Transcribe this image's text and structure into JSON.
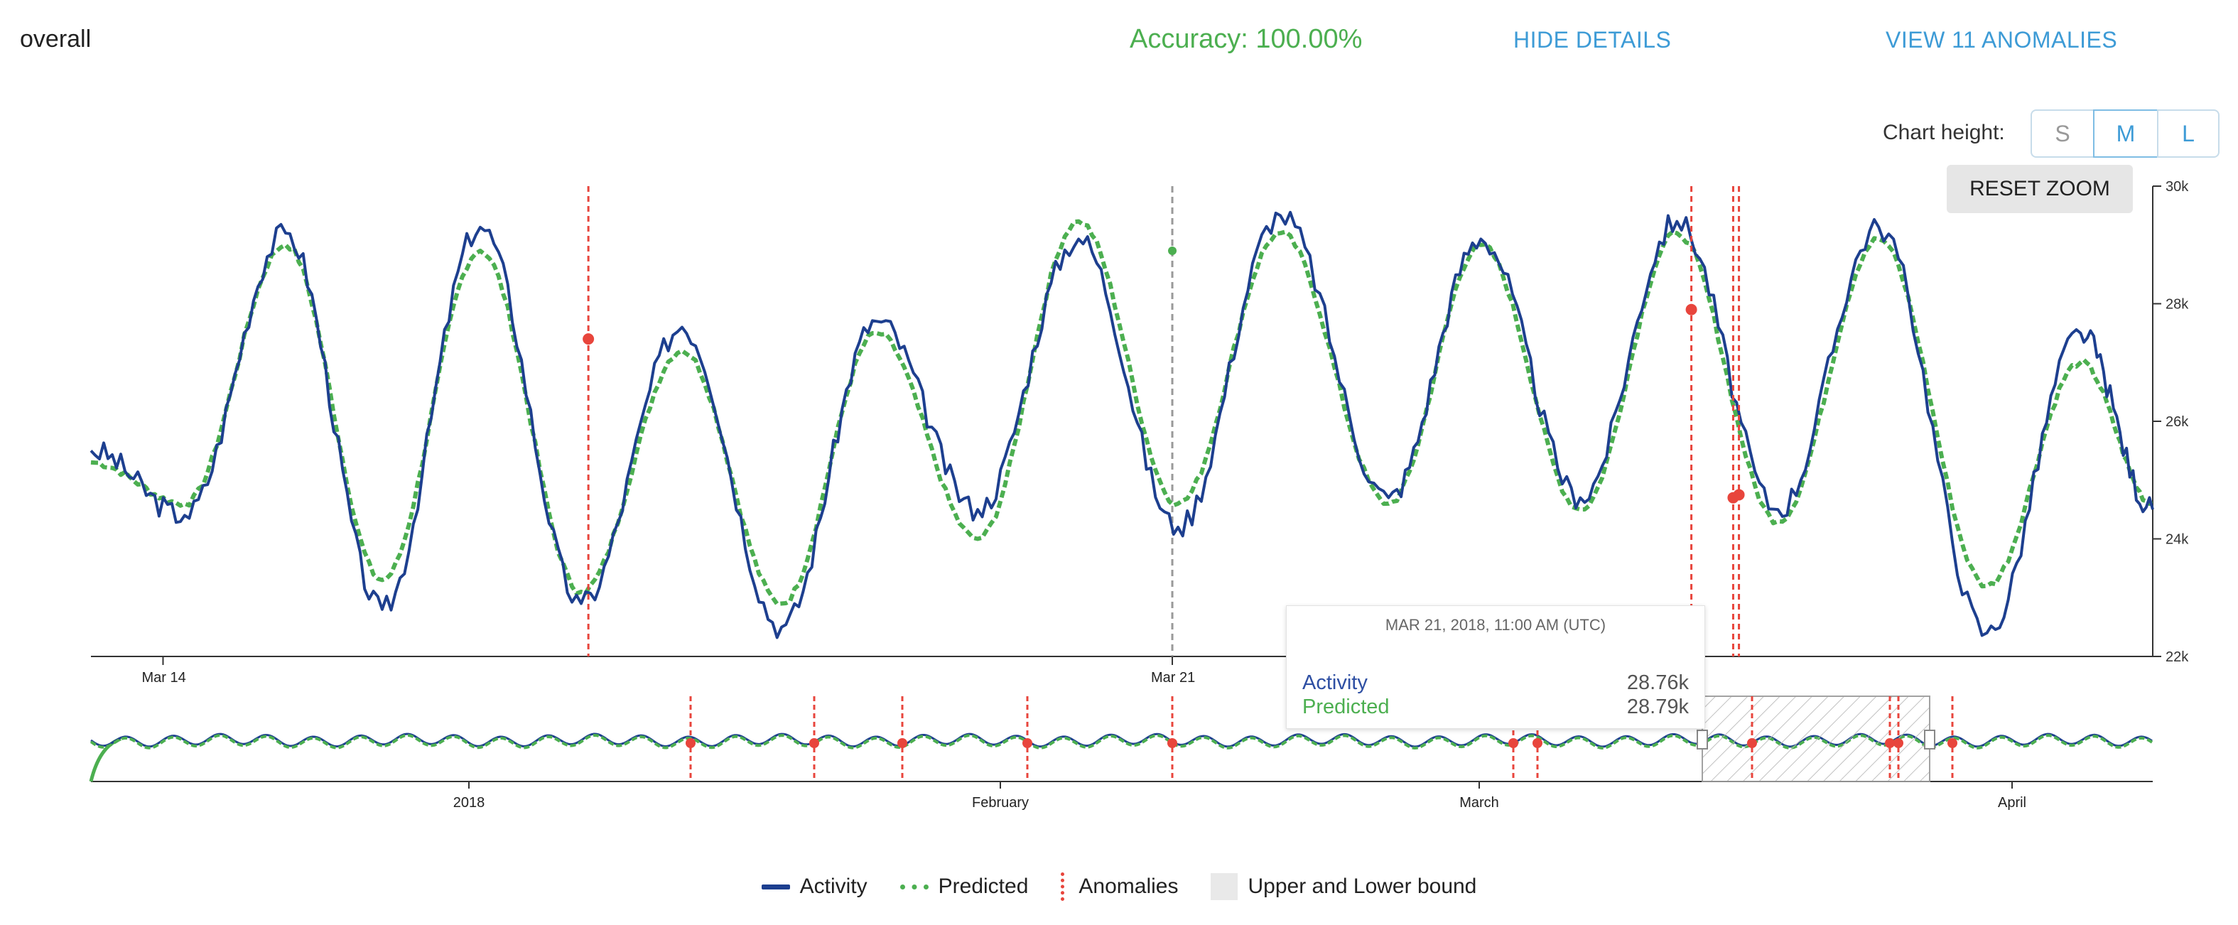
{
  "header": {
    "title": "overall",
    "accuracy": "Accuracy: 100.00%",
    "hide_details": "HIDE DETAILS",
    "view_anomalies": "VIEW 11 ANOMALIES"
  },
  "chart_height": {
    "label": "Chart height:",
    "options": [
      "S",
      "M",
      "L"
    ],
    "selected": "M"
  },
  "reset_zoom": "RESET ZOOM",
  "tooltip": {
    "date": "MAR 21, 2018, 11:00 AM (UTC)",
    "rows": [
      {
        "name": "Activity",
        "value": "28.76k"
      },
      {
        "name": "Predicted",
        "value": "28.79k"
      }
    ]
  },
  "legend": {
    "activity": "Activity",
    "predicted": "Predicted",
    "anomalies": "Anomalies",
    "bound": "Upper and Lower bound"
  },
  "colors": {
    "activity": "#1d3f8f",
    "predicted": "#4caf50",
    "anomaly": "#e8453c",
    "accent": "#3d9bd6"
  },
  "chart_data": [
    {
      "type": "line",
      "title": "",
      "xlabel": "",
      "ylabel": "",
      "x_range_days": [
        13.5,
        27.8
      ],
      "x_ticks": [
        {
          "day": 14,
          "label": "Mar 14"
        },
        {
          "day": 21,
          "label": "Mar 21"
        }
      ],
      "ylim": [
        22000,
        30000
      ],
      "y_ticks": [
        "22k",
        "24k",
        "26k",
        "28k",
        "30k"
      ],
      "y_tick_values": [
        22000,
        24000,
        26000,
        28000,
        30000
      ],
      "series": [
        {
          "name": "Activity",
          "peaks_day": [
            14.15,
            14.85,
            15.52,
            16.2,
            16.9,
            17.6,
            18.29,
            18.95,
            19.65,
            20.35,
            21.04,
            21.75,
            22.5,
            23.14,
            23.83,
            24.5,
            25.2,
            25.9,
            26.65,
            27.3
          ],
          "peaks_value": [
            24400,
            29200,
            22800,
            29300,
            22900,
            27600,
            22500,
            27700,
            24500,
            29100,
            24200,
            29500,
            24700,
            29100,
            24700,
            29400,
            24500,
            29300,
            22400,
            27500
          ],
          "start_value": 25500,
          "end_value": 24500
        },
        {
          "name": "Predicted",
          "peaks_day": [
            14.15,
            14.85,
            15.52,
            16.2,
            16.9,
            17.6,
            18.29,
            18.95,
            19.65,
            20.35,
            21.04,
            21.75,
            22.5,
            23.14,
            23.83,
            24.5,
            25.2,
            25.9,
            26.65,
            27.3
          ],
          "peaks_value": [
            24600,
            29000,
            23300,
            28900,
            23100,
            27200,
            22900,
            27500,
            24000,
            29400,
            24600,
            29200,
            24600,
            29000,
            24500,
            29200,
            24300,
            29100,
            23200,
            27000
          ],
          "start_value": 25300,
          "end_value": 24600
        }
      ],
      "anomalies": [
        {
          "day": 16.95,
          "value": 27400
        },
        {
          "day": 24.6,
          "value": 27900
        },
        {
          "day": 24.89,
          "value": 24700
        },
        {
          "day": 24.93,
          "value": 24750
        }
      ],
      "cursor_day": 21.0
    },
    {
      "type": "line",
      "title": "",
      "description_role": "navigator",
      "x_ticks": [
        "2018",
        "February",
        "March",
        "April"
      ],
      "anomaly_count_visible": 11,
      "selection": {
        "from": "Mar 14",
        "to": "Mar 28"
      }
    }
  ]
}
